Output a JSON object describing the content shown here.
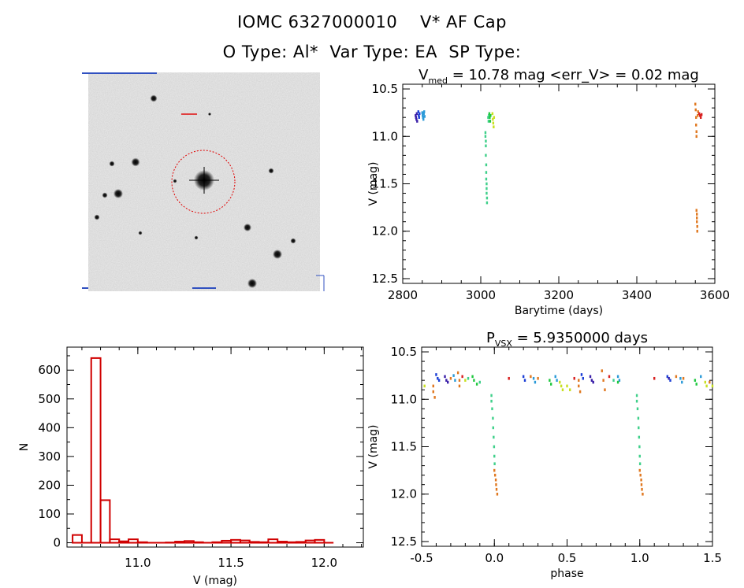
{
  "header": {
    "id": "IOMC 6327000010",
    "star": "V* AF Cap",
    "otype": "O Type: Al*",
    "vartype": "Var Type: EA",
    "sptype": "SP Type:"
  },
  "chart_data": [
    {
      "type": "image",
      "description_visible": "finder chart",
      "target_marker": "dashed red circle"
    },
    {
      "type": "scatter",
      "title_main": "V",
      "title_sub": "med",
      "title_rest": " = 10.78 mag <err_V> = 0.02 mag",
      "xlabel": "Barytime (days)",
      "ylabel": "V (mag)",
      "xlim": [
        2800,
        3600
      ],
      "ylim": [
        12.55,
        10.45
      ],
      "xticks": [
        "2800",
        "3000",
        "3200",
        "3400",
        "3600"
      ],
      "yticks": [
        "10.5",
        "11.0",
        "11.5",
        "12.0",
        "12.5"
      ],
      "series": [
        {
          "color": "#3a1fa8",
          "points": [
            [
              2833,
              10.78
            ],
            [
              2834,
              10.8
            ],
            [
              2835,
              10.82
            ],
            [
              2836,
              10.76
            ],
            [
              2837,
              10.84
            ]
          ]
        },
        {
          "color": "#1c3fd6",
          "points": [
            [
              2840,
              10.74
            ],
            [
              2841,
              10.78
            ],
            [
              2842,
              10.8
            ],
            [
              2843,
              10.76
            ]
          ]
        },
        {
          "color": "#2a9ad8",
          "points": [
            [
              2850,
              10.75
            ],
            [
              2851,
              10.78
            ],
            [
              2852,
              10.8
            ],
            [
              2853,
              10.82
            ],
            [
              2854,
              10.76
            ],
            [
              2855,
              10.74
            ],
            [
              2856,
              10.79
            ]
          ]
        },
        {
          "color": "#3fd08a",
          "points": [
            [
              3012,
              10.96
            ],
            [
              3012,
              11.0
            ],
            [
              3013,
              11.05
            ],
            [
              3013,
              11.1
            ],
            [
              3013,
              11.2
            ],
            [
              3014,
              11.3
            ],
            [
              3014,
              11.38
            ],
            [
              3014,
              11.45
            ],
            [
              3015,
              11.5
            ],
            [
              3015,
              11.55
            ],
            [
              3015,
              11.6
            ],
            [
              3016,
              11.65
            ],
            [
              3016,
              11.7
            ],
            [
              3019,
              10.8
            ],
            [
              3020,
              10.84
            ],
            [
              3021,
              10.78
            ]
          ]
        },
        {
          "color": "#20c840",
          "points": [
            [
              3022,
              10.76
            ],
            [
              3023,
              10.8
            ],
            [
              3024,
              10.84
            ],
            [
              3025,
              10.78
            ]
          ]
        },
        {
          "color": "#c8e020",
          "points": [
            [
              3030,
              10.76
            ],
            [
              3031,
              10.82
            ],
            [
              3032,
              10.86
            ],
            [
              3033,
              10.9
            ],
            [
              3034,
              10.8
            ]
          ]
        },
        {
          "color": "#e07820",
          "points": [
            [
              3550,
              10.66
            ],
            [
              3551,
              10.72
            ],
            [
              3552,
              10.8
            ],
            [
              3552,
              10.88
            ],
            [
              3553,
              10.95
            ],
            [
              3553,
              11.0
            ],
            [
              3553,
              11.78
            ],
            [
              3554,
              11.82
            ],
            [
              3554,
              11.86
            ],
            [
              3554,
              11.9
            ],
            [
              3555,
              11.95
            ],
            [
              3555,
              12.0
            ],
            [
              3556,
              10.78
            ],
            [
              3557,
              10.74
            ]
          ]
        },
        {
          "color": "#d82020",
          "points": [
            [
              3560,
              10.76
            ],
            [
              3562,
              10.78
            ],
            [
              3564,
              10.8
            ],
            [
              3566,
              10.77
            ]
          ]
        }
      ]
    },
    {
      "type": "bar",
      "subtype": "histogram",
      "xlabel": "V (mag)",
      "ylabel": "N",
      "xlim": [
        10.62,
        12.21
      ],
      "ylim": [
        -15,
        680
      ],
      "xticks": [
        "11.0",
        "11.5",
        "12.0"
      ],
      "yticks": [
        "0",
        "100",
        "200",
        "300",
        "400",
        "500",
        "600"
      ],
      "bin_width": 0.05,
      "bins": [
        {
          "left": 10.65,
          "count": 27
        },
        {
          "left": 10.7,
          "count": 0
        },
        {
          "left": 10.75,
          "count": 642
        },
        {
          "left": 10.8,
          "count": 148
        },
        {
          "left": 10.85,
          "count": 12
        },
        {
          "left": 10.9,
          "count": 5
        },
        {
          "left": 10.95,
          "count": 12
        },
        {
          "left": 11.0,
          "count": 2
        },
        {
          "left": 11.05,
          "count": 0
        },
        {
          "left": 11.1,
          "count": 0
        },
        {
          "left": 11.15,
          "count": 1
        },
        {
          "left": 11.2,
          "count": 4
        },
        {
          "left": 11.25,
          "count": 6
        },
        {
          "left": 11.3,
          "count": 2
        },
        {
          "left": 11.35,
          "count": 0
        },
        {
          "left": 11.4,
          "count": 2
        },
        {
          "left": 11.45,
          "count": 7
        },
        {
          "left": 11.5,
          "count": 10
        },
        {
          "left": 11.55,
          "count": 8
        },
        {
          "left": 11.6,
          "count": 3
        },
        {
          "left": 11.65,
          "count": 2
        },
        {
          "left": 11.7,
          "count": 12
        },
        {
          "left": 11.75,
          "count": 4
        },
        {
          "left": 11.8,
          "count": 2
        },
        {
          "left": 11.85,
          "count": 3
        },
        {
          "left": 11.9,
          "count": 8
        },
        {
          "left": 11.95,
          "count": 10
        },
        {
          "left": 12.0,
          "count": 0
        }
      ],
      "color": "#d00000"
    },
    {
      "type": "scatter",
      "title_main": "P",
      "title_sub": "VSX",
      "title_rest": " = 5.9350000 days",
      "xlabel": "phase",
      "ylabel": "V (mag)",
      "xlim": [
        -0.5,
        1.5
      ],
      "ylim": [
        12.55,
        10.45
      ],
      "xticks": [
        "-0.5",
        "0.0",
        "0.5",
        "1.0",
        "1.5"
      ],
      "yticks": [
        "10.5",
        "11.0",
        "11.5",
        "12.0",
        "12.5"
      ],
      "series": [
        {
          "color": "#3a1fa8",
          "points": [
            [
              -0.34,
              10.76
            ],
            [
              -0.33,
              10.8
            ],
            [
              -0.32,
              10.82
            ],
            [
              0.66,
              10.76
            ],
            [
              0.67,
              10.8
            ],
            [
              0.68,
              10.82
            ],
            [
              1.2,
              10.78
            ]
          ]
        },
        {
          "color": "#1c3fd6",
          "points": [
            [
              -0.4,
              10.74
            ],
            [
              -0.39,
              10.78
            ],
            [
              -0.38,
              10.8
            ],
            [
              0.2,
              10.76
            ],
            [
              0.21,
              10.8
            ],
            [
              0.6,
              10.74
            ],
            [
              0.61,
              10.78
            ],
            [
              1.19,
              10.76
            ],
            [
              1.21,
              10.8
            ]
          ]
        },
        {
          "color": "#2a9ad8",
          "points": [
            [
              -0.28,
              10.75
            ],
            [
              -0.27,
              10.8
            ],
            [
              0.27,
              10.78
            ],
            [
              0.28,
              10.82
            ],
            [
              0.42,
              10.76
            ],
            [
              0.43,
              10.8
            ],
            [
              0.85,
              10.76
            ],
            [
              0.86,
              10.8
            ],
            [
              1.28,
              10.78
            ],
            [
              1.29,
              10.82
            ],
            [
              1.42,
              10.76
            ]
          ]
        },
        {
          "color": "#3fd08a",
          "points": [
            [
              -0.02,
              10.96
            ],
            [
              -0.02,
              11.02
            ],
            [
              -0.015,
              11.1
            ],
            [
              -0.01,
              11.2
            ],
            [
              -0.008,
              11.3
            ],
            [
              -0.005,
              11.4
            ],
            [
              -0.002,
              11.5
            ],
            [
              0.0,
              11.6
            ],
            [
              0.002,
              11.68
            ],
            [
              0.98,
              10.96
            ],
            [
              0.98,
              11.02
            ],
            [
              0.985,
              11.1
            ],
            [
              0.99,
              11.2
            ],
            [
              0.992,
              11.3
            ],
            [
              0.995,
              11.4
            ],
            [
              0.998,
              11.5
            ],
            [
              1.0,
              11.6
            ],
            [
              1.002,
              11.68
            ],
            [
              -0.18,
              10.78
            ],
            [
              0.82,
              10.8
            ],
            [
              -0.1,
              10.82
            ]
          ]
        },
        {
          "color": "#20c840",
          "points": [
            [
              -0.15,
              10.76
            ],
            [
              -0.14,
              10.8
            ],
            [
              0.38,
              10.8
            ],
            [
              0.39,
              10.84
            ],
            [
              0.85,
              10.82
            ],
            [
              1.38,
              10.8
            ],
            [
              1.39,
              10.84
            ],
            [
              -0.12,
              10.84
            ]
          ]
        },
        {
          "color": "#c8e020",
          "points": [
            [
              -0.48,
              10.86
            ],
            [
              0.45,
              10.82
            ],
            [
              0.46,
              10.86
            ],
            [
              0.47,
              10.9
            ],
            [
              0.5,
              10.86
            ],
            [
              0.52,
              10.9
            ],
            [
              1.45,
              10.82
            ],
            [
              1.46,
              10.86
            ],
            [
              1.5,
              10.86
            ],
            [
              -0.2,
              10.8
            ]
          ]
        },
        {
          "color": "#e07820",
          "points": [
            [
              -0.42,
              10.86
            ],
            [
              -0.42,
              10.92
            ],
            [
              -0.41,
              10.98
            ],
            [
              -0.25,
              10.72
            ],
            [
              -0.24,
              10.8
            ],
            [
              -0.24,
              10.86
            ],
            [
              0.0,
              11.75
            ],
            [
              0.005,
              11.8
            ],
            [
              0.01,
              11.85
            ],
            [
              0.012,
              11.9
            ],
            [
              0.015,
              11.95
            ],
            [
              0.02,
              12.0
            ],
            [
              0.25,
              10.76
            ],
            [
              0.3,
              10.78
            ],
            [
              0.58,
              10.8
            ],
            [
              0.58,
              10.86
            ],
            [
              0.59,
              10.92
            ],
            [
              0.74,
              10.7
            ],
            [
              0.75,
              10.8
            ],
            [
              0.76,
              10.9
            ],
            [
              1.0,
              11.75
            ],
            [
              1.005,
              11.8
            ],
            [
              1.01,
              11.85
            ],
            [
              1.012,
              11.9
            ],
            [
              1.015,
              11.95
            ],
            [
              1.02,
              12.0
            ],
            [
              1.25,
              10.76
            ],
            [
              1.3,
              10.78
            ],
            [
              1.48,
              10.82
            ],
            [
              -0.3,
              10.78
            ]
          ]
        },
        {
          "color": "#d82020",
          "points": [
            [
              -0.22,
              10.76
            ],
            [
              0.1,
              10.78
            ],
            [
              0.55,
              10.78
            ],
            [
              0.79,
              10.76
            ],
            [
              1.1,
              10.78
            ]
          ]
        }
      ]
    }
  ]
}
